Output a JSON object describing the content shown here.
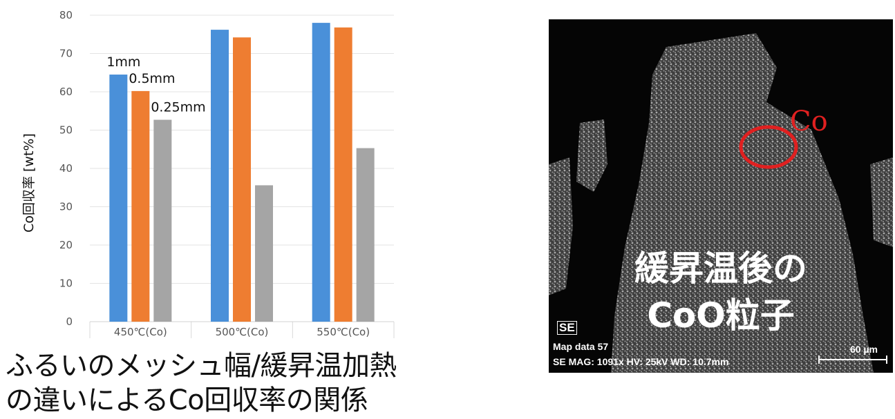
{
  "chart_data": {
    "type": "bar",
    "categories": [
      "450℃(Co)",
      "500℃(Co)",
      "550℃(Co)"
    ],
    "series": [
      {
        "name": "1mm",
        "values": [
          64.5,
          76.2,
          78.0
        ],
        "color": "#4a90d9"
      },
      {
        "name": "0.5mm",
        "values": [
          60.2,
          74.2,
          76.8
        ],
        "color": "#ee7d31"
      },
      {
        "name": "0.25mm",
        "values": [
          52.7,
          35.6,
          45.3
        ],
        "color": "#a5a5a5"
      }
    ],
    "ylabel": "Co回収率 [wt%]",
    "xlabel": "",
    "ylim": [
      0,
      80
    ],
    "yticks": [
      0,
      10,
      20,
      30,
      40,
      50,
      60,
      70,
      80
    ],
    "grid": true,
    "legend": "data labels above first category bars"
  },
  "caption": {
    "line1": "ふるいのメッシュ幅/緩昇温加熱",
    "line2": "の違いによるCo回収率の関係"
  },
  "sem_image": {
    "co_label": "Co",
    "title_line1": "緩昇温後の",
    "title_line2": "CoO粒子",
    "se_badge": "SE",
    "info_line1": "Map data 57",
    "info_line2": "SE  MAG: 1091x  HV: 25kV  WD: 10.7mm",
    "scale_label": "60 µm",
    "circle_color": "#e02020"
  }
}
